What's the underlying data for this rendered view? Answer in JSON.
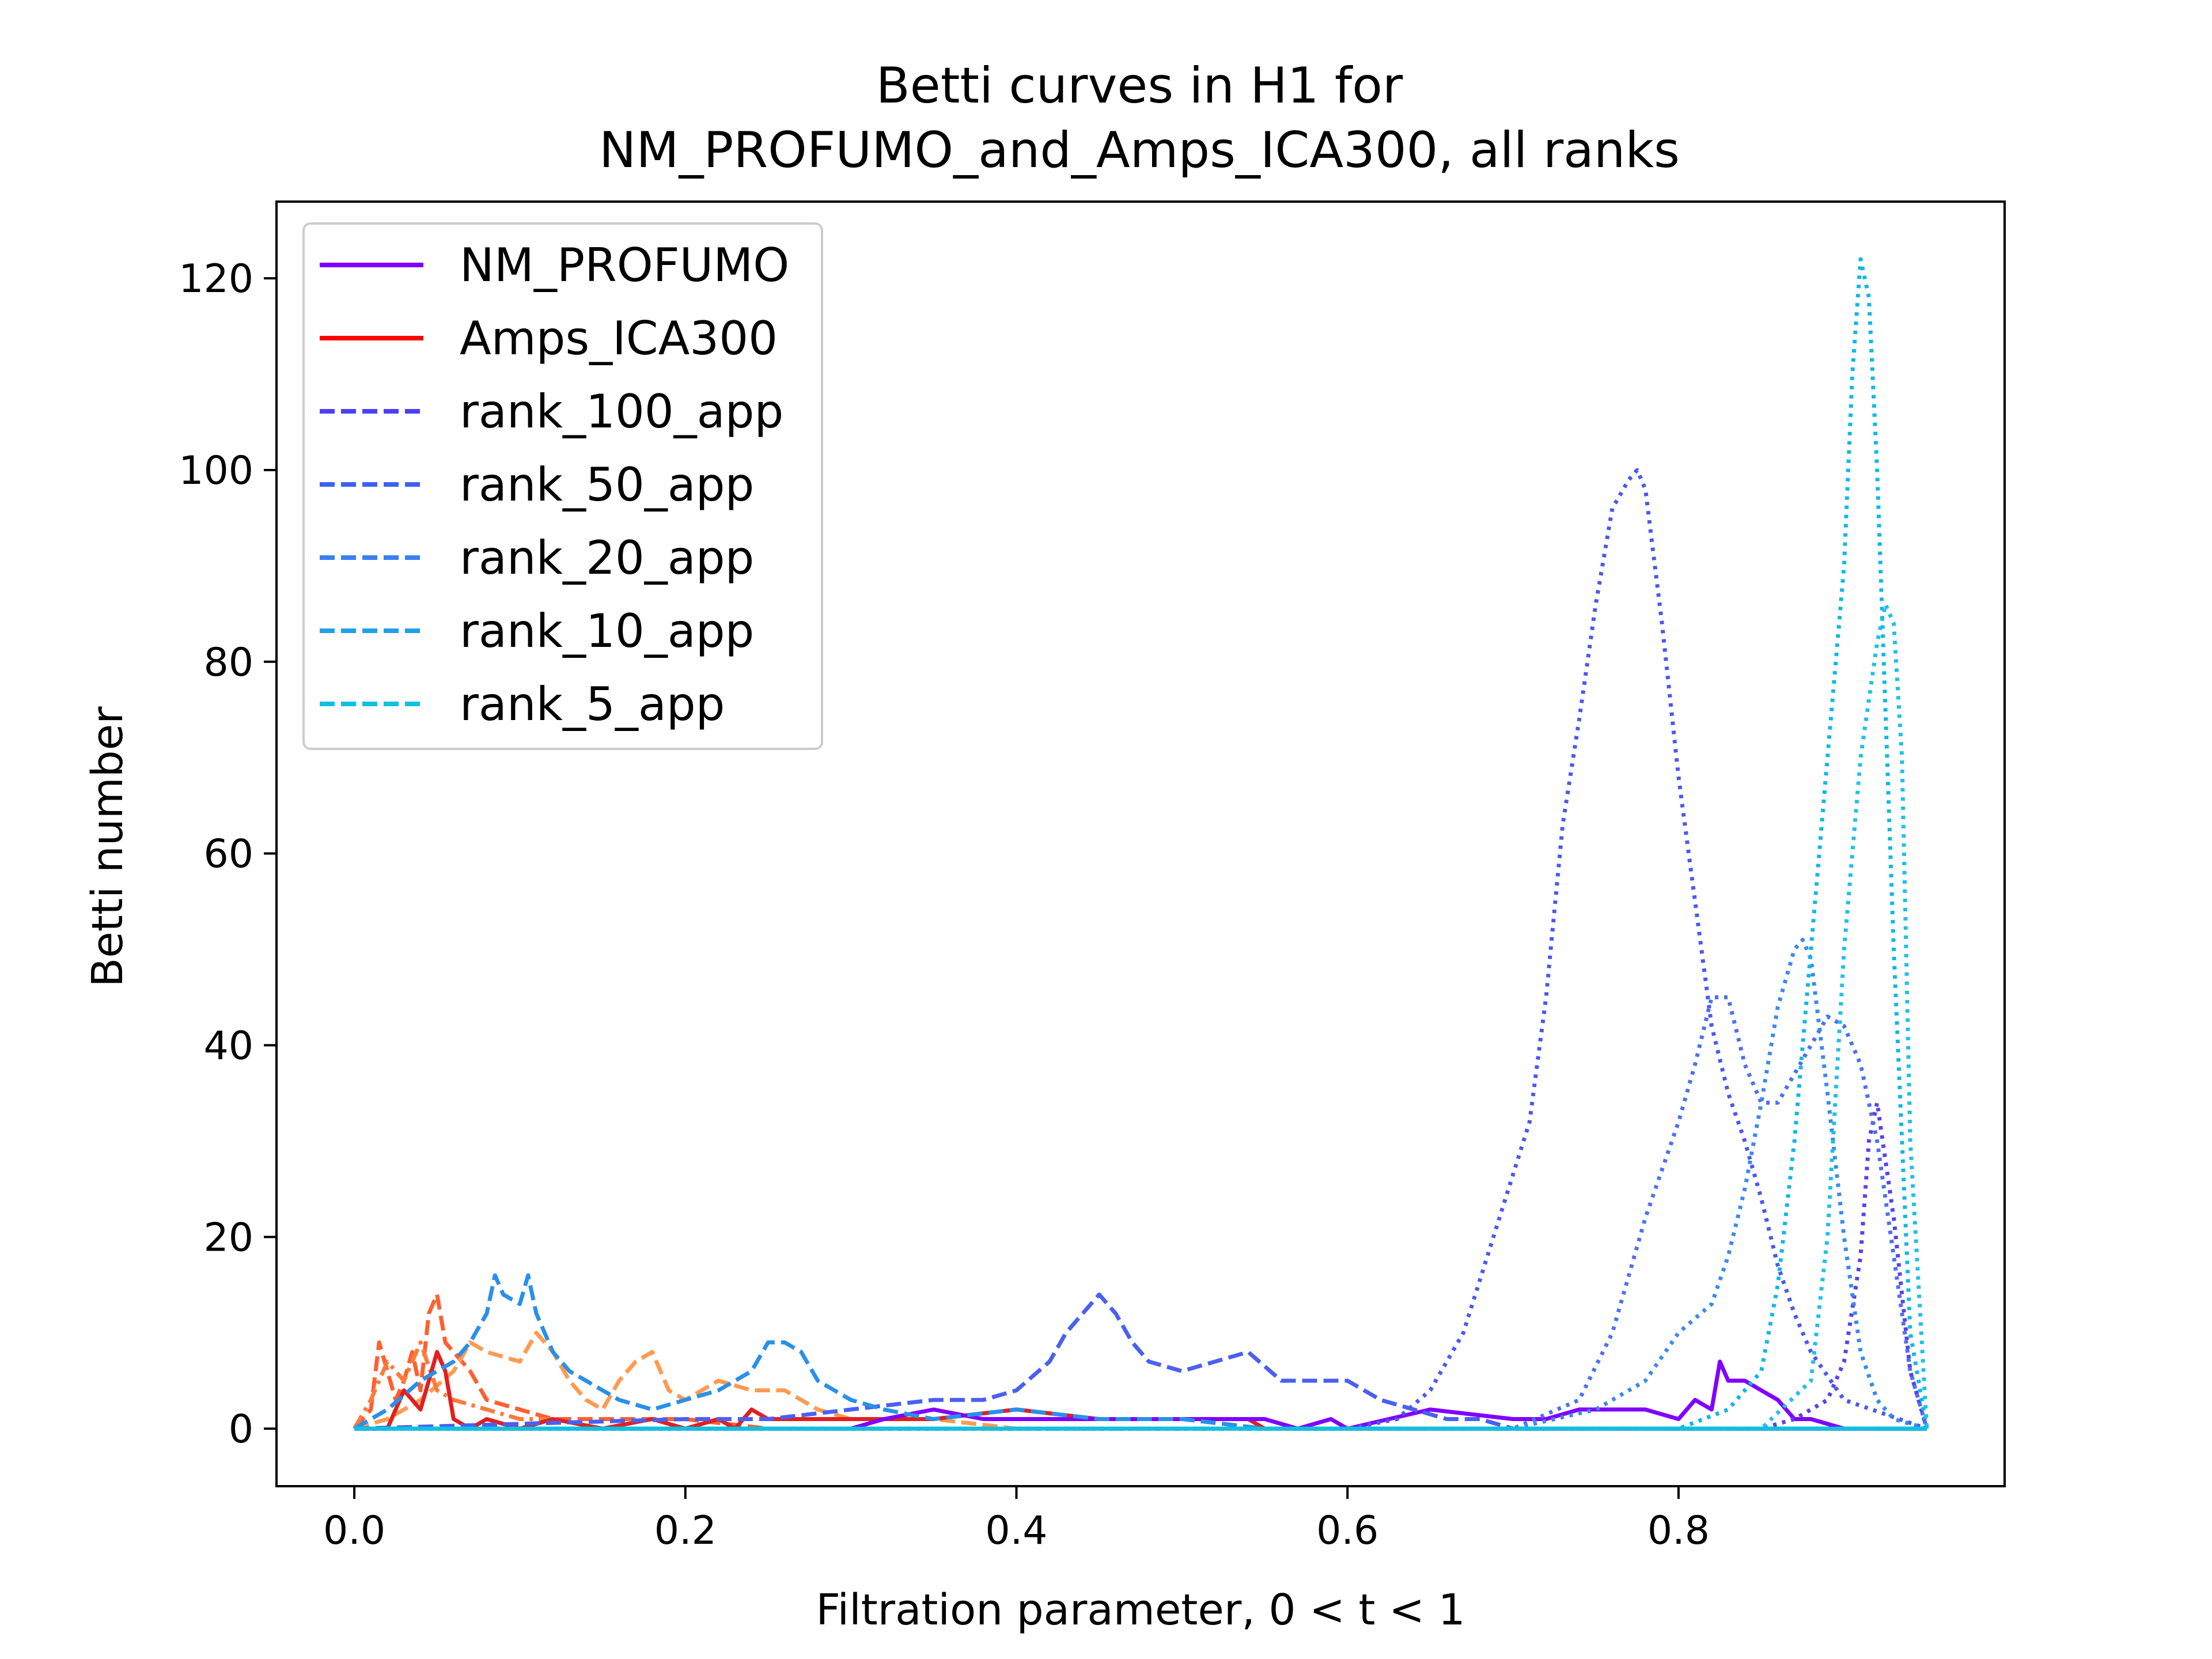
{
  "chart_data": {
    "type": "line",
    "title": "Betti curves in H1 for",
    "subtitle": "NM_PROFUMO_and_Amps_ICA300, all ranks",
    "xlabel": "Filtration parameter, 0 < t < 1",
    "ylabel": "Betti number",
    "xlim": [
      -0.047,
      0.997
    ],
    "ylim": [
      -6,
      128
    ],
    "xticks": [
      0.0,
      0.2,
      0.4,
      0.6,
      0.8
    ],
    "xtick_labels": [
      "0.0",
      "0.2",
      "0.4",
      "0.6",
      "0.8"
    ],
    "yticks": [
      0,
      20,
      40,
      60,
      80,
      100,
      120
    ],
    "ytick_labels": [
      "0",
      "20",
      "40",
      "60",
      "80",
      "100",
      "120"
    ],
    "grid": false,
    "legend_position": "top-left",
    "legend": [
      {
        "label": "NM_PROFUMO",
        "color": "#8000ff",
        "style": "solid"
      },
      {
        "label": "Amps_ICA300",
        "color": "#ff0000",
        "style": "solid"
      },
      {
        "label": "rank_100_app",
        "color": "#4a40f5",
        "style": "dashed"
      },
      {
        "label": "rank_50_app",
        "color": "#4060f0",
        "style": "dashed"
      },
      {
        "label": "rank_20_app",
        "color": "#3a80f0",
        "style": "dashed"
      },
      {
        "label": "rank_10_app",
        "color": "#22a0e8",
        "style": "dashed"
      },
      {
        "label": "rank_5_app",
        "color": "#10c0e0",
        "style": "dashed"
      }
    ],
    "series": [
      {
        "color": "#ff6030",
        "style": "dashed",
        "x": [
          0.0,
          0.01,
          0.015,
          0.02,
          0.025,
          0.03,
          0.035,
          0.04,
          0.045,
          0.05,
          0.055,
          0.06,
          0.07,
          0.08,
          0.1,
          0.12,
          0.15,
          0.2,
          0.25,
          0.3,
          0.35,
          0.4,
          0.45,
          0.5,
          0.55,
          0.6,
          0.7,
          0.8,
          0.9,
          0.95
        ],
        "y": [
          0,
          2,
          9,
          6,
          3,
          5,
          8,
          4,
          12,
          14,
          9,
          8,
          6,
          3,
          2,
          1,
          1,
          1,
          0,
          0,
          0,
          0,
          0,
          0,
          0,
          0,
          0,
          0,
          0,
          0
        ]
      },
      {
        "color": "#ff9a50",
        "style": "dashed",
        "x": [
          0.0,
          0.02,
          0.04,
          0.06,
          0.07,
          0.08,
          0.1,
          0.11,
          0.12,
          0.13,
          0.14,
          0.15,
          0.16,
          0.17,
          0.18,
          0.19,
          0.2,
          0.22,
          0.24,
          0.26,
          0.28,
          0.3,
          0.35,
          0.4,
          0.45,
          0.5,
          0.6,
          0.7,
          0.8,
          0.95
        ],
        "y": [
          0,
          1,
          3,
          6,
          9,
          8,
          7,
          10,
          8,
          5,
          3,
          2,
          5,
          7,
          8,
          4,
          3,
          5,
          4,
          4,
          2,
          1,
          1,
          0,
          0,
          0,
          0,
          0,
          0,
          0
        ]
      },
      {
        "color": "#ff7a3a",
        "style": "dashdot",
        "x": [
          0.0,
          0.01,
          0.02,
          0.03,
          0.04,
          0.05,
          0.06,
          0.08,
          0.1,
          0.12,
          0.15,
          0.2,
          0.3,
          0.4,
          0.5,
          0.6,
          0.8,
          0.95
        ],
        "y": [
          0,
          3,
          7,
          5,
          9,
          4,
          3,
          2,
          1,
          1,
          0,
          0,
          0,
          0,
          0,
          0,
          0,
          0
        ]
      },
      {
        "color": "#e02020",
        "style": "solid",
        "x": [
          0.0,
          0.02,
          0.03,
          0.04,
          0.045,
          0.05,
          0.055,
          0.06,
          0.07,
          0.08,
          0.1,
          0.12,
          0.15,
          0.18,
          0.2,
          0.22,
          0.23,
          0.24,
          0.25,
          0.3,
          0.35,
          0.4,
          0.45,
          0.5,
          0.54,
          0.55,
          0.6,
          0.8,
          0.95
        ],
        "y": [
          0,
          0,
          4,
          2,
          5,
          8,
          6,
          1,
          0,
          1,
          0,
          1,
          0,
          1,
          0,
          1,
          0,
          2,
          1,
          1,
          1,
          2,
          1,
          1,
          1,
          0,
          0,
          0,
          0
        ]
      },
      {
        "color": "#8000ff",
        "style": "solid",
        "x": [
          0.0,
          0.3,
          0.32,
          0.35,
          0.38,
          0.4,
          0.45,
          0.5,
          0.55,
          0.57,
          0.59,
          0.6,
          0.65,
          0.7,
          0.72,
          0.74,
          0.76,
          0.78,
          0.8,
          0.81,
          0.82,
          0.825,
          0.83,
          0.84,
          0.85,
          0.86,
          0.87,
          0.88,
          0.9,
          0.95
        ],
        "y": [
          0,
          0,
          1,
          2,
          1,
          1,
          1,
          1,
          1,
          0,
          1,
          0,
          2,
          1,
          1,
          2,
          2,
          2,
          1,
          3,
          2,
          7,
          5,
          5,
          4,
          3,
          1,
          1,
          0,
          0
        ]
      },
      {
        "color": "#5a40f0",
        "style": "dotted",
        "x": [
          0.0,
          0.1,
          0.2,
          0.3,
          0.4,
          0.5,
          0.6,
          0.65,
          0.7,
          0.75,
          0.8,
          0.85,
          0.87,
          0.88,
          0.89,
          0.9,
          0.91,
          0.915,
          0.92,
          0.93,
          0.94,
          0.95
        ],
        "y": [
          0,
          0,
          0,
          0,
          0,
          0,
          0,
          0,
          0,
          0,
          0,
          0,
          1,
          2,
          3,
          7,
          18,
          30,
          34,
          22,
          6,
          0
        ]
      },
      {
        "color": "#4a58f0",
        "style": "dotted",
        "x": [
          0.0,
          0.5,
          0.6,
          0.63,
          0.65,
          0.67,
          0.69,
          0.71,
          0.72,
          0.73,
          0.74,
          0.75,
          0.76,
          0.77,
          0.775,
          0.78,
          0.79,
          0.8,
          0.81,
          0.82,
          0.83,
          0.84,
          0.85,
          0.86,
          0.87,
          0.88,
          0.9,
          0.95
        ],
        "y": [
          0,
          0,
          0,
          1,
          4,
          10,
          21,
          32,
          45,
          63,
          74,
          86,
          96,
          99,
          100,
          98,
          84,
          68,
          55,
          42,
          35,
          30,
          24,
          17,
          12,
          8,
          3,
          0
        ]
      },
      {
        "color": "#4e70f0",
        "style": "dotted",
        "x": [
          0.0,
          0.6,
          0.7,
          0.74,
          0.76,
          0.78,
          0.8,
          0.81,
          0.82,
          0.83,
          0.84,
          0.85,
          0.86,
          0.87,
          0.88,
          0.89,
          0.9,
          0.91,
          0.92,
          0.93,
          0.94,
          0.95
        ],
        "y": [
          0,
          0,
          0,
          3,
          10,
          22,
          32,
          38,
          45,
          45,
          38,
          34,
          34,
          37,
          40,
          43,
          42,
          38,
          30,
          18,
          6,
          0
        ]
      },
      {
        "color": "#3a8aee",
        "style": "dotted",
        "x": [
          0.0,
          0.7,
          0.75,
          0.78,
          0.8,
          0.82,
          0.83,
          0.84,
          0.85,
          0.86,
          0.87,
          0.875,
          0.88,
          0.89,
          0.9,
          0.91,
          0.92,
          0.93,
          0.95
        ],
        "y": [
          0,
          0,
          2,
          5,
          10,
          13,
          18,
          25,
          34,
          44,
          50,
          51,
          49,
          35,
          20,
          8,
          3,
          1,
          0
        ]
      },
      {
        "color": "#10b8e6",
        "style": "dotted",
        "x": [
          0.0,
          0.8,
          0.83,
          0.85,
          0.86,
          0.87,
          0.88,
          0.89,
          0.9,
          0.905,
          0.91,
          0.915,
          0.92,
          0.93,
          0.94,
          0.95
        ],
        "y": [
          0,
          0,
          2,
          6,
          15,
          30,
          50,
          70,
          90,
          110,
          122,
          118,
          100,
          50,
          10,
          0
        ]
      },
      {
        "color": "#20c0e8",
        "style": "dotted",
        "x": [
          0.0,
          0.85,
          0.88,
          0.89,
          0.9,
          0.91,
          0.92,
          0.925,
          0.93,
          0.935,
          0.94,
          0.95
        ],
        "y": [
          0,
          0,
          5,
          20,
          50,
          70,
          82,
          86,
          84,
          70,
          30,
          0
        ]
      },
      {
        "color": "#4a60f0",
        "style": "dashed",
        "x": [
          0.0,
          0.2,
          0.25,
          0.3,
          0.35,
          0.38,
          0.4,
          0.42,
          0.43,
          0.44,
          0.45,
          0.46,
          0.47,
          0.48,
          0.5,
          0.52,
          0.54,
          0.56,
          0.58,
          0.6,
          0.62,
          0.64,
          0.66,
          0.68,
          0.7,
          0.75,
          0.8,
          0.85,
          0.9,
          0.95
        ],
        "y": [
          0,
          1,
          1,
          2,
          3,
          3,
          4,
          7,
          10,
          12,
          14,
          12,
          9,
          7,
          6,
          7,
          8,
          5,
          5,
          5,
          3,
          2,
          1,
          1,
          0,
          0,
          0,
          0,
          0,
          0
        ]
      },
      {
        "color": "#2a90e8",
        "style": "dashed",
        "x": [
          0.0,
          0.02,
          0.04,
          0.06,
          0.07,
          0.08,
          0.085,
          0.09,
          0.1,
          0.105,
          0.11,
          0.12,
          0.13,
          0.14,
          0.15,
          0.16,
          0.18,
          0.2,
          0.22,
          0.24,
          0.25,
          0.26,
          0.27,
          0.28,
          0.3,
          0.32,
          0.35,
          0.4,
          0.45,
          0.5,
          0.55,
          0.6,
          0.7,
          0.8,
          0.95
        ],
        "y": [
          0,
          2,
          5,
          7,
          9,
          12,
          16,
          14,
          13,
          16,
          12,
          8,
          6,
          5,
          4,
          3,
          2,
          3,
          4,
          6,
          9,
          9,
          8,
          5,
          3,
          2,
          1,
          2,
          1,
          1,
          0,
          0,
          0,
          0,
          0
        ]
      },
      {
        "color": "#10c0e0",
        "style": "solid",
        "x": [
          0.0,
          0.1,
          0.2,
          0.3,
          0.4,
          0.5,
          0.55,
          0.6,
          0.7,
          0.8,
          0.9,
          0.95
        ],
        "y": [
          0,
          0,
          0,
          0,
          0,
          0,
          0,
          0,
          0,
          0,
          0,
          0
        ]
      }
    ]
  }
}
